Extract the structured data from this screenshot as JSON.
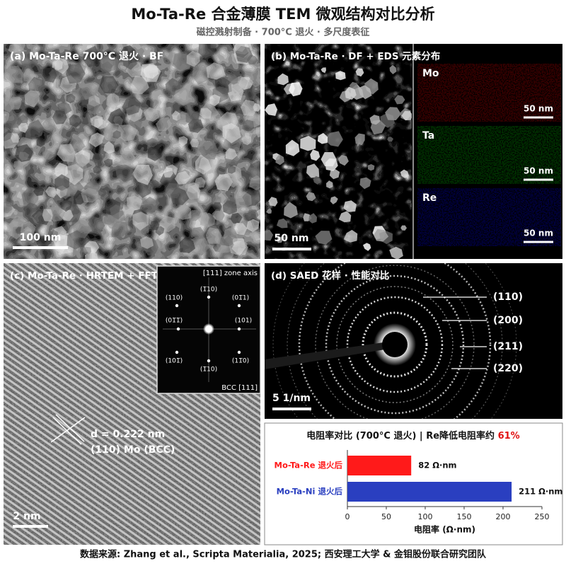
{
  "header": {
    "title": "Mo-Ta-Re 合金薄膜 TEM 微观结构对比分析",
    "subtitle": "磁控溅射制备 · 700°C 退火 · 多尺度表征"
  },
  "panels": {
    "a": {
      "label": "(a) Mo-Ta-Re 700°C 退火 · BF",
      "scale": "100 nm"
    },
    "b": {
      "label": "(b) Mo-Ta-Re · DF + EDS 元素分布",
      "scale": "50 nm",
      "maps": [
        {
          "element": "Mo",
          "scale": "50 nm"
        },
        {
          "element": "Ta",
          "scale": "50 nm"
        },
        {
          "element": "Re",
          "scale": "50 nm"
        }
      ]
    },
    "c": {
      "label": "(c) Mo-Ta-Re · HRTEM + FFT",
      "scale": "2 nm",
      "d_spacing": "d = 0.222 nm",
      "plane": "(110) Mo (BCC)",
      "fft": {
        "zone": "[111] zone axis",
        "footer": "BCC [111]",
        "spots": [
          "(1̅10)",
          "(110)",
          "(01̅1)",
          "(01̅1̅)",
          "(101)",
          "(101̅)",
          "(11̅0)",
          "(1̅10)"
        ]
      }
    },
    "d": {
      "label": "(d) SAED 花样 · 性能对比",
      "scale": "5 1/nm",
      "rings": [
        "(110)",
        "(200)",
        "(211)",
        "(220)"
      ]
    }
  },
  "chart_data": {
    "type": "barh",
    "title": "电阻率对比 (700°C 退火) | Re降低电阻率约",
    "title_highlight": "61%",
    "categories": [
      "Mo-Ta-Re 退火后",
      "Mo-Ta-Ni 退火后"
    ],
    "values": [
      82,
      211
    ],
    "value_labels": [
      "82 Ω·nm",
      "211 Ω·nm"
    ],
    "colors": [
      "#ff1a1a",
      "#2a3fc0"
    ],
    "xlim": [
      0,
      250
    ],
    "xticks": [
      0,
      50,
      100,
      150,
      200,
      250
    ],
    "xlabel": "电阻率 (Ω·nm)",
    "grid": false
  },
  "footer": "数据来源: Zhang et al., Scripta Materialia, 2025; 西安理工大学 & 金钼股份联合研究团队"
}
